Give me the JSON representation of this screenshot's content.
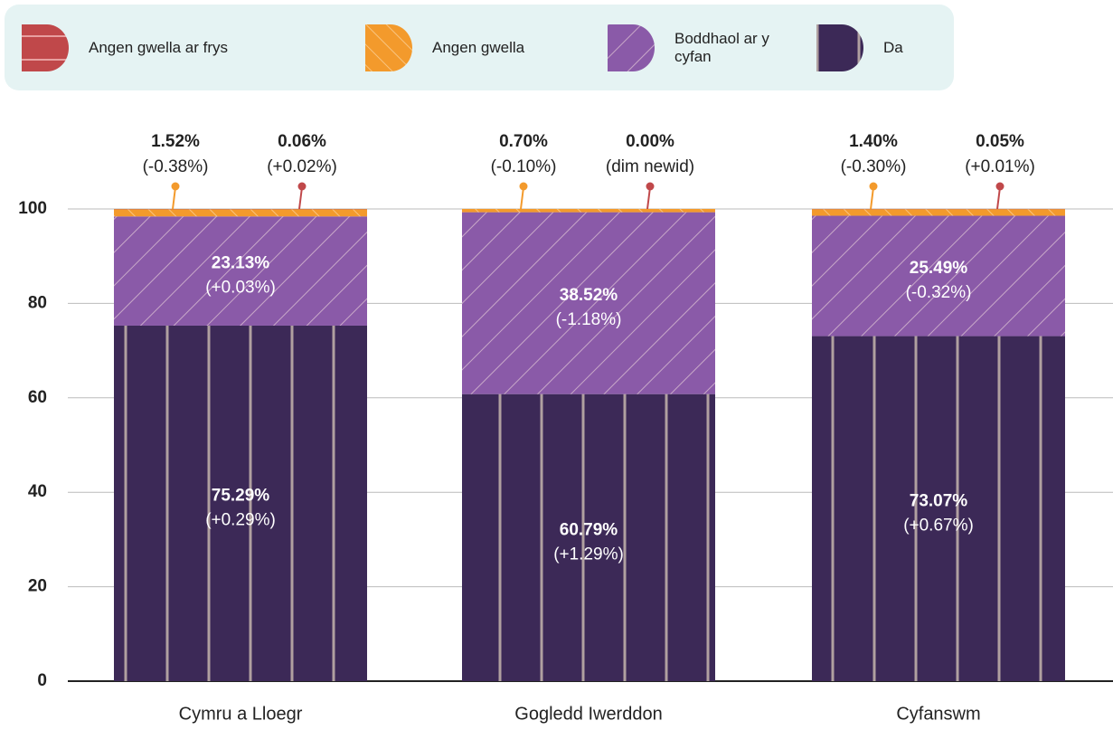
{
  "chart_data": {
    "type": "stacked_bar",
    "categories": [
      "Cymru a Lloegr",
      "Gogledd Iwerddon",
      "Cyfanswm"
    ],
    "series": [
      {
        "name": "Angen gwella ar frys",
        "color": "#c0484a",
        "values": [
          0.06,
          0.0,
          0.05
        ],
        "value_labels": [
          "0.06%",
          "0.00%",
          "0.05%"
        ],
        "change_labels": [
          "(+0.02%)",
          "(dim newid)",
          "(+0.01%)"
        ]
      },
      {
        "name": "Angen gwella",
        "color": "#f39a2c",
        "values": [
          1.52,
          0.7,
          1.4
        ],
        "value_labels": [
          "1.52%",
          "0.70%",
          "1.40%"
        ],
        "change_labels": [
          "(-0.38%)",
          "(-0.10%)",
          "(-0.30%)"
        ]
      },
      {
        "name": "Boddhaol ar y cyfan",
        "color": "#8a5aa8",
        "values": [
          23.13,
          38.52,
          25.49
        ],
        "value_labels": [
          "23.13%",
          "38.52%",
          "25.49%"
        ],
        "change_labels": [
          "(+0.03%)",
          "(-1.18%)",
          "(-0.32%)"
        ]
      },
      {
        "name": "Da",
        "color": "#3c2957",
        "values": [
          75.29,
          60.79,
          73.07
        ],
        "value_labels": [
          "75.29%",
          "60.79%",
          "73.07%"
        ],
        "change_labels": [
          "(+0.29%)",
          "(+1.29%)",
          "(+0.67%)"
        ]
      }
    ],
    "ylim": [
      0,
      100
    ],
    "yticks": [
      0,
      20,
      40,
      60,
      80,
      100
    ],
    "grid": true
  }
}
